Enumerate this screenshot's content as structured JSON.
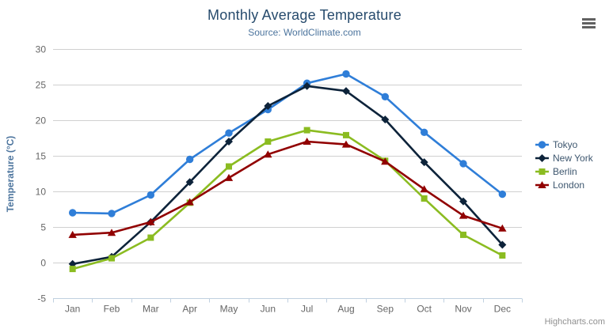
{
  "header": {
    "context_menu_tooltip": "Chart context menu"
  },
  "credits": {
    "label": "Highcharts.com"
  },
  "palette": {
    "title_color": "#274b6d",
    "subtitle_color": "#4d759e",
    "axis_title_color": "#4d759e",
    "tick_label_color": "#666666",
    "gridline_color": "#d0d0d0",
    "axis_line_color": "#c0d0e0",
    "legend_text_color": "#3e576f",
    "background": "#ffffff"
  },
  "chart_data": {
    "type": "line",
    "title": "Monthly Average Temperature",
    "subtitle": "Source: WorldClimate.com",
    "categories": [
      "Jan",
      "Feb",
      "Mar",
      "Apr",
      "May",
      "Jun",
      "Jul",
      "Aug",
      "Sep",
      "Oct",
      "Nov",
      "Dec"
    ],
    "series": [
      {
        "name": "Tokyo",
        "color": "#2f7ed8",
        "marker": "circle",
        "values": [
          7.0,
          6.9,
          9.5,
          14.5,
          18.2,
          21.5,
          25.2,
          26.5,
          23.3,
          18.3,
          13.9,
          9.6
        ]
      },
      {
        "name": "New York",
        "color": "#0d233a",
        "marker": "diamond",
        "values": [
          -0.2,
          0.8,
          5.7,
          11.3,
          17.0,
          22.0,
          24.8,
          24.1,
          20.1,
          14.1,
          8.6,
          2.5
        ]
      },
      {
        "name": "Berlin",
        "color": "#8bbc21",
        "marker": "square",
        "values": [
          -0.9,
          0.6,
          3.5,
          8.4,
          13.5,
          17.0,
          18.6,
          17.9,
          14.3,
          9.0,
          3.9,
          1.0
        ]
      },
      {
        "name": "London",
        "color": "#910000",
        "marker": "triangle",
        "values": [
          3.9,
          4.2,
          5.7,
          8.5,
          11.9,
          15.2,
          17.0,
          16.6,
          14.2,
          10.3,
          6.6,
          4.8
        ]
      }
    ],
    "xlabel": "",
    "ylabel": "Temperature (°C)",
    "ylim": [
      -5,
      30
    ],
    "ytick_step": 5,
    "grid": true,
    "legend_position": "right"
  }
}
